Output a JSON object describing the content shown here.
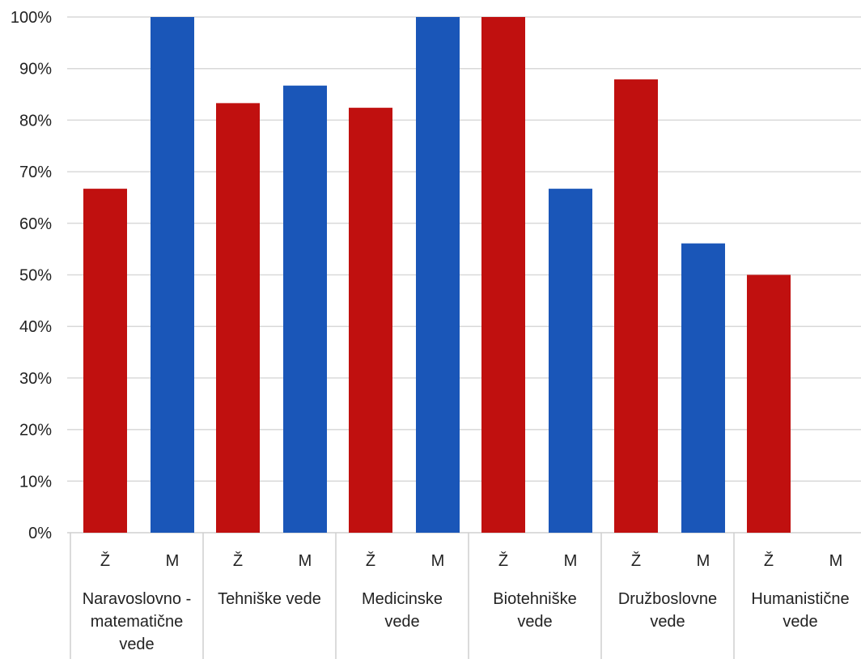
{
  "chart_data": {
    "type": "bar",
    "title": "",
    "xlabel": "",
    "ylabel": "",
    "ylim": [
      0,
      100
    ],
    "y_ticks": [
      "0%",
      "10%",
      "20%",
      "30%",
      "40%",
      "50%",
      "60%",
      "70%",
      "80%",
      "90%",
      "100%"
    ],
    "grid": true,
    "sub_labels": [
      "Ž",
      "M"
    ],
    "groups": [
      {
        "label_lines": [
          "Naravoslovno -",
          "matematične",
          "vede"
        ],
        "values": [
          66.7,
          100
        ]
      },
      {
        "label_lines": [
          "Tehniške vede"
        ],
        "values": [
          83.3,
          86.7
        ]
      },
      {
        "label_lines": [
          "Medicinske",
          "vede"
        ],
        "values": [
          82.4,
          100
        ]
      },
      {
        "label_lines": [
          "Biotehniške",
          "vede"
        ],
        "values": [
          100,
          66.7
        ]
      },
      {
        "label_lines": [
          "Družboslovne",
          "vede"
        ],
        "values": [
          87.9,
          56.1
        ]
      },
      {
        "label_lines": [
          "Humanistične",
          "vede"
        ],
        "values": [
          50,
          0
        ]
      }
    ],
    "colors": {
      "Ž": "#c0100f",
      "M": "#1a56b8"
    }
  }
}
